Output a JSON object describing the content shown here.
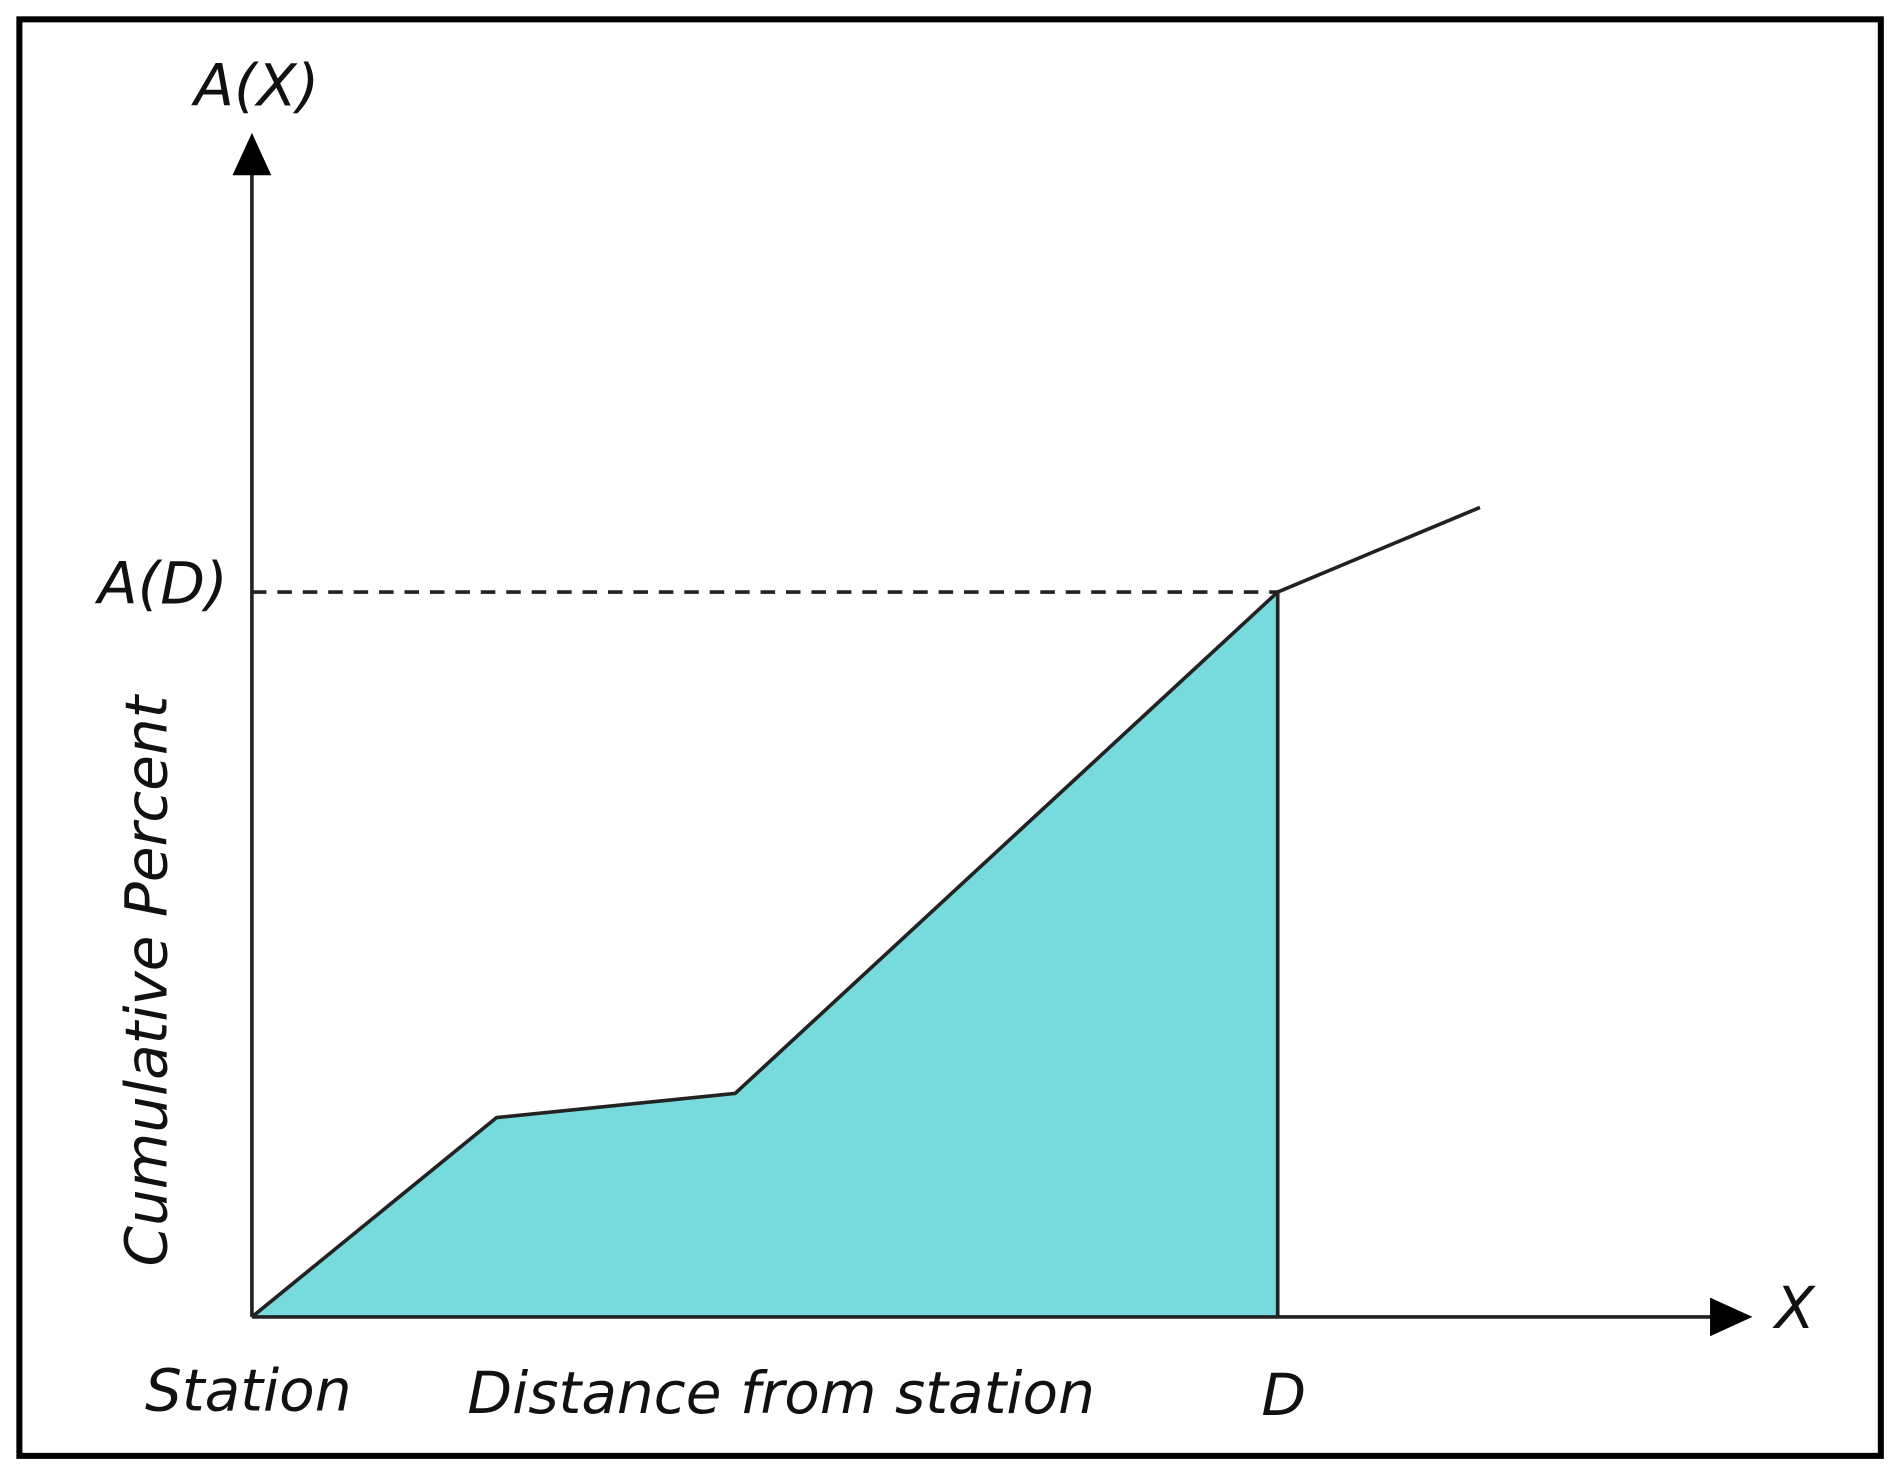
{
  "axes": {
    "y_symbol": "A(X)",
    "x_symbol": "X",
    "y_title": "Cumulative Percent",
    "x_title": "Distance from station"
  },
  "markers": {
    "origin": "Station",
    "d": "D",
    "a_d": "A(D)"
  }
}
